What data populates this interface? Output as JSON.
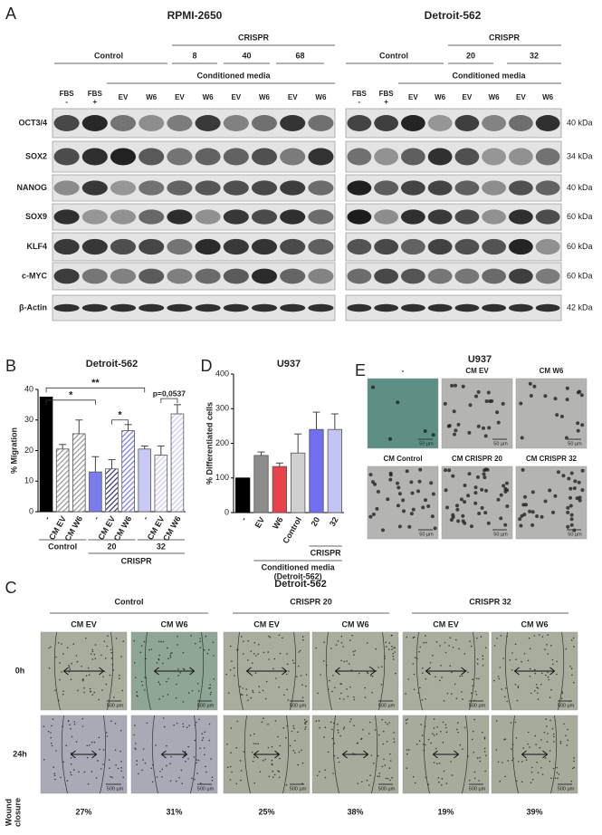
{
  "panel_a": {
    "letter": "A",
    "blocks": [
      {
        "title": "RPMI-2650",
        "crispr": "CRISPR",
        "control": "Control",
        "clones": [
          "8",
          "40",
          "68"
        ],
        "conditioned_media": "Conditioned media",
        "lanes": [
          [
            "FBS",
            "-"
          ],
          [
            "FBS",
            "+"
          ],
          [
            "EV"
          ],
          [
            "W6"
          ],
          [
            "EV"
          ],
          [
            "W6"
          ],
          [
            "EV"
          ],
          [
            "W6"
          ],
          [
            "EV"
          ],
          [
            "W6"
          ]
        ]
      },
      {
        "title": "Detroit-562",
        "crispr": "CRISPR",
        "control": "Control",
        "clones": [
          "20",
          "32"
        ],
        "conditioned_media": "Conditioned media",
        "lanes": [
          [
            "FBS",
            "-"
          ],
          [
            "FBS",
            "+"
          ],
          [
            "EV"
          ],
          [
            "W6"
          ],
          [
            "EV"
          ],
          [
            "W6"
          ],
          [
            "EV"
          ],
          [
            "W6"
          ]
        ]
      }
    ],
    "proteins": [
      "OCT3/4",
      "SOX2",
      "NANOG",
      "SOX9",
      "KLF4",
      "c-MYC",
      "β-Actin"
    ],
    "sizes": [
      "40 kDa",
      "34 kDa",
      "40 kDa",
      "60 kDa",
      "60 kDa",
      "60 kDa",
      "42 kDa"
    ]
  },
  "chart_data": [
    {
      "type": "bar",
      "letter": "B",
      "title": "Detroit-562",
      "y_label": "% Migration",
      "categories": [
        "-",
        "CM EV",
        "CM W6",
        "-",
        "CM EV",
        "CM W6",
        "-",
        "CM EV",
        "CM W6"
      ],
      "values": [
        37.5,
        20.5,
        25.5,
        13,
        14,
        26.5,
        20.5,
        18.5,
        32
      ],
      "errors": [
        0,
        1.5,
        4.5,
        5,
        3,
        2,
        1,
        3,
        3
      ],
      "colors": [
        "#000000",
        "#9a9a9a",
        "#9a9a9a",
        "#7b7bf0",
        "#35357a",
        "#7b7bf0",
        "#c9c9f5",
        "#c9c9f5",
        "#c9c9f5"
      ],
      "hatched": [
        false,
        true,
        true,
        false,
        true,
        true,
        false,
        true,
        true
      ],
      "ylim": [
        0,
        40
      ],
      "yticks": [
        0,
        10,
        20,
        30,
        40
      ],
      "groups": [
        "Control",
        "20",
        "32"
      ],
      "crispr_label": "CRISPR",
      "annotations": [
        "*",
        "**",
        "*",
        "p=0,0537"
      ]
    },
    {
      "type": "bar",
      "letter": "D",
      "title": "U937",
      "y_label": "% Differentiated cells",
      "categories": [
        "-",
        "EV",
        "W6",
        "Control",
        "20",
        "32"
      ],
      "values": [
        100,
        165,
        133,
        172,
        240,
        240
      ],
      "errors": [
        0,
        10,
        10,
        55,
        50,
        45
      ],
      "colors": [
        "#000000",
        "#8c8c8c",
        "#e8434a",
        "#d0d0d0",
        "#6f6ff0",
        "#c4c4f3"
      ],
      "hatched": [
        false,
        false,
        false,
        false,
        false,
        false
      ],
      "ylim": [
        0,
        400
      ],
      "yticks": [
        0,
        100,
        200,
        300,
        400
      ],
      "crispr_label": "CRISPR",
      "media_label": [
        "Conditioned media",
        "(Detroit-562)"
      ]
    }
  ],
  "panel_e": {
    "letter": "E",
    "title": "U937",
    "images": [
      "-",
      "CM EV",
      "CM W6",
      "CM Control",
      "CM CRISPR 20",
      "CM CRISPR 32"
    ],
    "scale": "50 µm"
  },
  "panel_c": {
    "letter": "C",
    "title": "Detroit-562",
    "groups": [
      "Control",
      "CRISPR 20",
      "CRISPR 32"
    ],
    "columns": [
      "CM EV",
      "CM W6"
    ],
    "rows": [
      "0h",
      "24h"
    ],
    "scale": "500 µm",
    "closure_label": [
      "Wound",
      "closure"
    ],
    "closure": [
      "27%",
      "31%",
      "25%",
      "38%",
      "19%",
      "39%"
    ]
  }
}
